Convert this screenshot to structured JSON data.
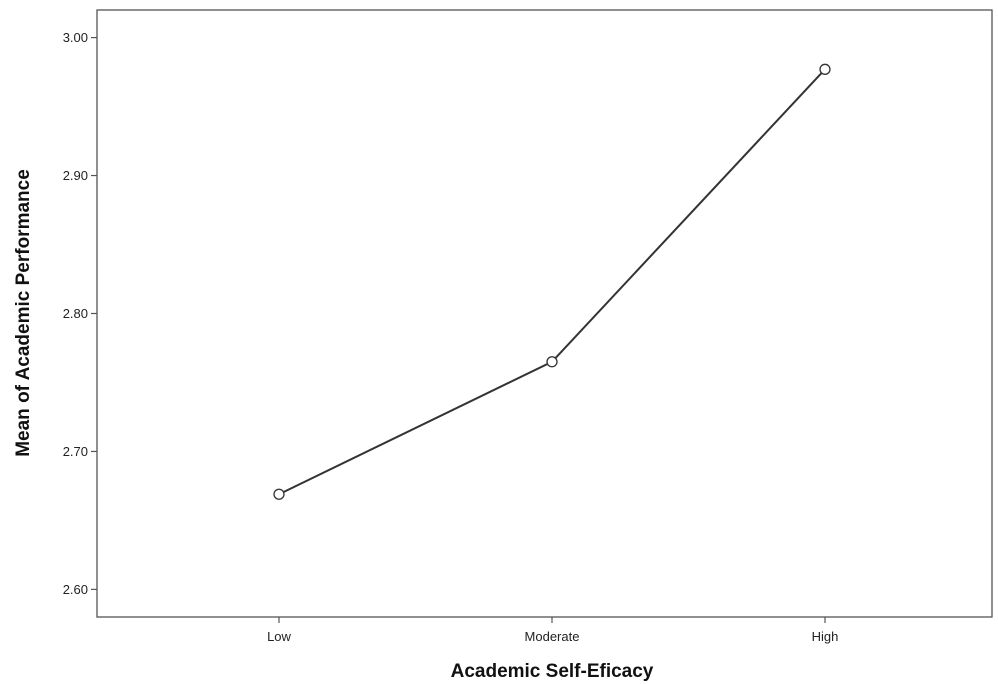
{
  "chart_data": {
    "type": "line",
    "title": "",
    "xlabel": "Academic Self-Eficacy",
    "ylabel": "Mean of Academic Performance",
    "categories": [
      "Low",
      "Moderate",
      "High"
    ],
    "series": [
      {
        "values": [
          2.669,
          2.765,
          2.977
        ]
      }
    ],
    "ylim": [
      2.58,
      3.02
    ],
    "yticks": [
      2.6,
      2.7,
      2.8,
      2.9,
      3.0
    ],
    "ytick_labels": [
      "2.60",
      "2.70",
      "2.80",
      "2.90",
      "3.00"
    ],
    "grid": false,
    "legend": "none",
    "markers": "open-circle",
    "colors": {
      "line": "#333333",
      "frame": "#555555"
    }
  }
}
